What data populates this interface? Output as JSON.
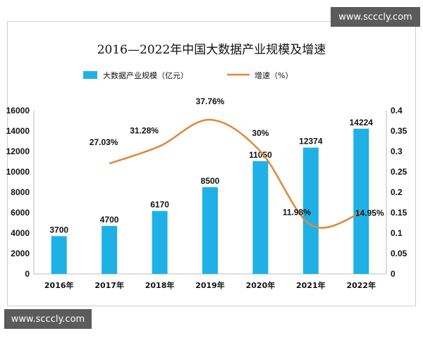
{
  "watermark_top": "www.scccly.com",
  "watermark_bottom": "www.scccly.com",
  "colors": {
    "bar": "#1fb1e6",
    "line": "#e0883a",
    "axis": "#bbbbbb"
  },
  "chart_data": {
    "type": "bar",
    "title": "2016—2022年中国大数据产业规模及增速",
    "categories": [
      "2016年",
      "2017年",
      "2018年",
      "2019年",
      "2020年",
      "2021年",
      "2022年"
    ],
    "series": [
      {
        "name": "大数据产业规模（亿元）",
        "type": "bar",
        "axis": "left",
        "values": [
          3700,
          4700,
          6170,
          8500,
          11050,
          12374,
          14224
        ],
        "labels": [
          "3700",
          "4700",
          "6170",
          "8500",
          "11050",
          "12374",
          "14224"
        ]
      },
      {
        "name": "增速（%）",
        "type": "line",
        "axis": "right",
        "values": [
          null,
          0.2703,
          0.3128,
          0.3776,
          0.3,
          0.1198,
          0.1495
        ],
        "labels": [
          "",
          "27.03%",
          "31.28%",
          "37.76%",
          "30%",
          "11.98%",
          "14.95%"
        ]
      }
    ],
    "y_left": {
      "min": 0,
      "max": 16000,
      "ticks": [
        "0",
        "2000",
        "4000",
        "6000",
        "8000",
        "10000",
        "12000",
        "14000",
        "16000"
      ]
    },
    "y_right": {
      "min": 0,
      "max": 0.4,
      "ticks": [
        "0",
        "0.05",
        "0.1",
        "0.15",
        "0.2",
        "0.25",
        "0.3",
        "0.35",
        "0.4"
      ]
    },
    "legend_position": "top-left",
    "grid": false
  }
}
